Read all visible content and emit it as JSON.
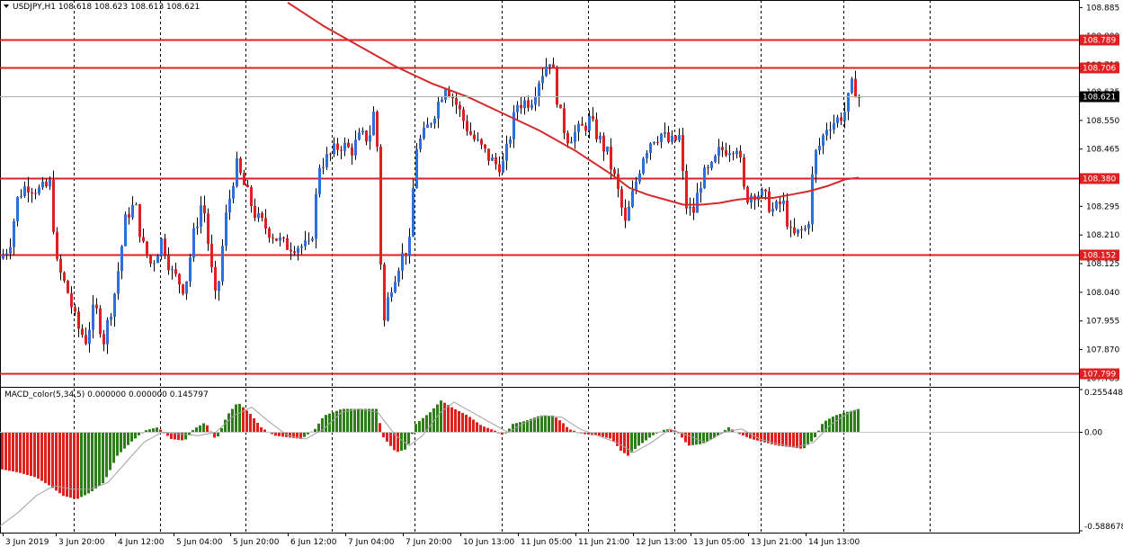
{
  "header": {
    "main_label": "USDJPY,H1  108.618 108.623 108.613 108.621",
    "macd_label": "MACD_color(5,34,5) 0.000000 0.000000 0.145797"
  },
  "colors": {
    "bull": "#2e6fe0",
    "bear": "#e02020",
    "level": "#e02020",
    "ma": "#d42a2a",
    "hist_up": "#2e7d1a",
    "hist_down": "#e02020",
    "signal": "#a0a0a0"
  },
  "chart_data": [
    {
      "type": "candlestick",
      "symbol": "USDJPY",
      "timeframe": "H1",
      "ylim": [
        107.77,
        108.87
      ],
      "y_ticks": [
        "108.885",
        "108.800",
        "108.715",
        "108.635",
        "108.550",
        "108.465",
        "108.380",
        "108.295",
        "108.210",
        "108.125",
        "108.040",
        "107.955",
        "107.870",
        "107.785"
      ],
      "x_ticks": [
        "3 Jun 2019",
        "3 Jun 20:00",
        "4 Jun 12:00",
        "5 Jun 04:00",
        "5 Jun 20:00",
        "6 Jun 12:00",
        "7 Jun 04:00",
        "7 Jun 20:00",
        "10 Jun 13:00",
        "11 Jun 05:00",
        "11 Jun 21:00",
        "12 Jun 13:00",
        "13 Jun 05:00",
        "13 Jun 21:00",
        "14 Jun 13:00"
      ],
      "levels": [
        {
          "value": 108.789,
          "label": "108.789"
        },
        {
          "value": 108.706,
          "label": "108.706"
        },
        {
          "value": 108.38,
          "label": "108.380"
        },
        {
          "value": 108.152,
          "label": "108.152"
        },
        {
          "value": 107.799,
          "label": "107.799"
        }
      ],
      "current_price": {
        "value": 108.621,
        "label": "108.621"
      },
      "close_path": [
        [
          0,
          108.14
        ],
        [
          10,
          108.18
        ],
        [
          20,
          108.33
        ],
        [
          30,
          108.36
        ],
        [
          45,
          108.34
        ],
        [
          55,
          108.36
        ],
        [
          63,
          108.12
        ],
        [
          75,
          108.04
        ],
        [
          85,
          107.94
        ],
        [
          95,
          107.9
        ],
        [
          105,
          108.0
        ],
        [
          115,
          107.9
        ],
        [
          128,
          108.05
        ],
        [
          140,
          108.27
        ],
        [
          150,
          108.3
        ],
        [
          158,
          108.18
        ],
        [
          168,
          108.12
        ],
        [
          180,
          108.2
        ],
        [
          190,
          108.1
        ],
        [
          205,
          108.05
        ],
        [
          215,
          108.21
        ],
        [
          225,
          108.32
        ],
        [
          235,
          108.1
        ],
        [
          240,
          108.0
        ],
        [
          250,
          108.25
        ],
        [
          262,
          108.42
        ],
        [
          272,
          108.35
        ],
        [
          285,
          108.26
        ],
        [
          300,
          108.22
        ],
        [
          315,
          108.18
        ],
        [
          330,
          108.18
        ],
        [
          345,
          108.17
        ],
        [
          355,
          108.42
        ],
        [
          365,
          108.44
        ],
        [
          378,
          108.48
        ],
        [
          390,
          108.46
        ],
        [
          400,
          108.5
        ],
        [
          410,
          108.5
        ],
        [
          415,
          108.57
        ],
        [
          420,
          108.45
        ],
        [
          425,
          107.92
        ],
        [
          433,
          108.05
        ],
        [
          445,
          108.14
        ],
        [
          455,
          108.18
        ],
        [
          462,
          108.47
        ],
        [
          472,
          108.51
        ],
        [
          485,
          108.59
        ],
        [
          495,
          108.66
        ],
        [
          505,
          108.61
        ],
        [
          515,
          108.55
        ],
        [
          525,
          108.5
        ],
        [
          540,
          108.45
        ],
        [
          550,
          108.42
        ],
        [
          560,
          108.42
        ],
        [
          568,
          108.52
        ],
        [
          575,
          108.6
        ],
        [
          590,
          108.61
        ],
        [
          600,
          108.68
        ],
        [
          612,
          108.74
        ],
        [
          622,
          108.57
        ],
        [
          630,
          108.5
        ],
        [
          645,
          108.52
        ],
        [
          655,
          108.55
        ],
        [
          665,
          108.5
        ],
        [
          675,
          108.45
        ],
        [
          685,
          108.36
        ],
        [
          695,
          108.24
        ],
        [
          705,
          108.35
        ],
        [
          715,
          108.45
        ],
        [
          725,
          108.5
        ],
        [
          735,
          108.51
        ],
        [
          745,
          108.48
        ],
        [
          755,
          108.5
        ],
        [
          762,
          108.3
        ],
        [
          770,
          108.27
        ],
        [
          780,
          108.38
        ],
        [
          790,
          108.4
        ],
        [
          800,
          108.46
        ],
        [
          810,
          108.47
        ],
        [
          820,
          108.48
        ],
        [
          828,
          108.32
        ],
        [
          840,
          108.34
        ],
        [
          850,
          108.32
        ],
        [
          860,
          108.28
        ],
        [
          870,
          108.31
        ],
        [
          880,
          108.2
        ],
        [
          890,
          108.22
        ],
        [
          898,
          108.23
        ],
        [
          905,
          108.44
        ],
        [
          912,
          108.48
        ],
        [
          920,
          108.54
        ],
        [
          930,
          108.55
        ],
        [
          940,
          108.58
        ],
        [
          948,
          108.66
        ],
        [
          955,
          108.62
        ]
      ],
      "moving_average": [
        [
          320,
          108.9
        ],
        [
          360,
          108.83
        ],
        [
          400,
          108.77
        ],
        [
          440,
          108.71
        ],
        [
          480,
          108.66
        ],
        [
          520,
          108.62
        ],
        [
          560,
          108.57
        ],
        [
          600,
          108.52
        ],
        [
          640,
          108.46
        ],
        [
          680,
          108.39
        ],
        [
          700,
          108.35
        ],
        [
          720,
          108.33
        ],
        [
          740,
          108.315
        ],
        [
          760,
          108.3
        ],
        [
          780,
          108.3
        ],
        [
          800,
          108.305
        ],
        [
          820,
          108.315
        ],
        [
          840,
          108.32
        ],
        [
          860,
          108.32
        ],
        [
          880,
          108.33
        ],
        [
          900,
          108.34
        ],
        [
          920,
          108.355
        ],
        [
          940,
          108.375
        ],
        [
          955,
          108.38
        ]
      ]
    },
    {
      "type": "histogram",
      "name": "MACD_color(5,34,5)",
      "ylim": [
        -0.588678,
        0.255448
      ],
      "y_ticks": [
        "0.255448",
        "0.00",
        "-0.588678"
      ],
      "current_value": 0.145797,
      "values": [
        [
          0,
          -0.22
        ],
        [
          20,
          -0.24
        ],
        [
          40,
          -0.27
        ],
        [
          55,
          -0.32
        ],
        [
          70,
          -0.38
        ],
        [
          85,
          -0.4
        ],
        [
          100,
          -0.36
        ],
        [
          115,
          -0.3
        ],
        [
          130,
          -0.14
        ],
        [
          145,
          -0.06
        ],
        [
          160,
          0.01
        ],
        [
          175,
          0.03
        ],
        [
          190,
          -0.04
        ],
        [
          205,
          -0.05
        ],
        [
          215,
          0.02
        ],
        [
          228,
          0.06
        ],
        [
          240,
          -0.05
        ],
        [
          252,
          0.1
        ],
        [
          264,
          0.18
        ],
        [
          278,
          0.11
        ],
        [
          290,
          0.03
        ],
        [
          305,
          -0.02
        ],
        [
          320,
          -0.03
        ],
        [
          335,
          -0.04
        ],
        [
          350,
          0.02
        ],
        [
          360,
          0.1
        ],
        [
          380,
          0.14
        ],
        [
          400,
          0.14
        ],
        [
          418,
          0.14
        ],
        [
          426,
          -0.03
        ],
        [
          440,
          -0.12
        ],
        [
          452,
          -0.1
        ],
        [
          462,
          0.05
        ],
        [
          478,
          0.12
        ],
        [
          490,
          0.19
        ],
        [
          505,
          0.14
        ],
        [
          520,
          0.1
        ],
        [
          535,
          0.04
        ],
        [
          550,
          0.01
        ],
        [
          560,
          -0.02
        ],
        [
          570,
          0.05
        ],
        [
          585,
          0.07
        ],
        [
          600,
          0.1
        ],
        [
          615,
          0.1
        ],
        [
          625,
          0.06
        ],
        [
          632,
          0.02
        ],
        [
          648,
          -0.01
        ],
        [
          665,
          -0.02
        ],
        [
          680,
          -0.04
        ],
        [
          690,
          -0.11
        ],
        [
          698,
          -0.14
        ],
        [
          710,
          -0.08
        ],
        [
          725,
          -0.02
        ],
        [
          740,
          0.02
        ],
        [
          752,
          0.01
        ],
        [
          765,
          -0.08
        ],
        [
          780,
          -0.07
        ],
        [
          795,
          -0.03
        ],
        [
          810,
          0.03
        ],
        [
          822,
          -0.01
        ],
        [
          835,
          -0.04
        ],
        [
          850,
          -0.06
        ],
        [
          865,
          -0.08
        ],
        [
          880,
          -0.09
        ],
        [
          893,
          -0.1
        ],
        [
          905,
          -0.04
        ],
        [
          915,
          0.06
        ],
        [
          928,
          0.1
        ],
        [
          940,
          0.12
        ],
        [
          955,
          0.14
        ]
      ],
      "signal": [
        [
          0,
          -0.56
        ],
        [
          20,
          -0.48
        ],
        [
          40,
          -0.38
        ],
        [
          60,
          -0.32
        ],
        [
          80,
          -0.34
        ],
        [
          100,
          -0.34
        ],
        [
          120,
          -0.3
        ],
        [
          140,
          -0.18
        ],
        [
          160,
          -0.06
        ],
        [
          180,
          0.0
        ],
        [
          200,
          -0.01
        ],
        [
          220,
          -0.02
        ],
        [
          240,
          0.0
        ],
        [
          260,
          0.1
        ],
        [
          280,
          0.15
        ],
        [
          300,
          0.06
        ],
        [
          320,
          -0.02
        ],
        [
          340,
          -0.04
        ],
        [
          360,
          0.02
        ],
        [
          380,
          0.12
        ],
        [
          400,
          0.14
        ],
        [
          420,
          0.12
        ],
        [
          440,
          -0.02
        ],
        [
          455,
          -0.08
        ],
        [
          470,
          -0.02
        ],
        [
          490,
          0.12
        ],
        [
          505,
          0.18
        ],
        [
          525,
          0.12
        ],
        [
          545,
          0.06
        ],
        [
          565,
          0.0
        ],
        [
          585,
          0.06
        ],
        [
          605,
          0.1
        ],
        [
          625,
          0.09
        ],
        [
          645,
          0.02
        ],
        [
          665,
          -0.02
        ],
        [
          685,
          -0.06
        ],
        [
          705,
          -0.12
        ],
        [
          725,
          -0.06
        ],
        [
          745,
          0.02
        ],
        [
          765,
          -0.02
        ],
        [
          785,
          -0.06
        ],
        [
          805,
          0.0
        ],
        [
          825,
          0.02
        ],
        [
          845,
          -0.04
        ],
        [
          865,
          -0.07
        ],
        [
          885,
          -0.09
        ],
        [
          905,
          -0.06
        ],
        [
          925,
          0.05
        ],
        [
          945,
          0.12
        ],
        [
          955,
          0.14
        ]
      ]
    }
  ]
}
